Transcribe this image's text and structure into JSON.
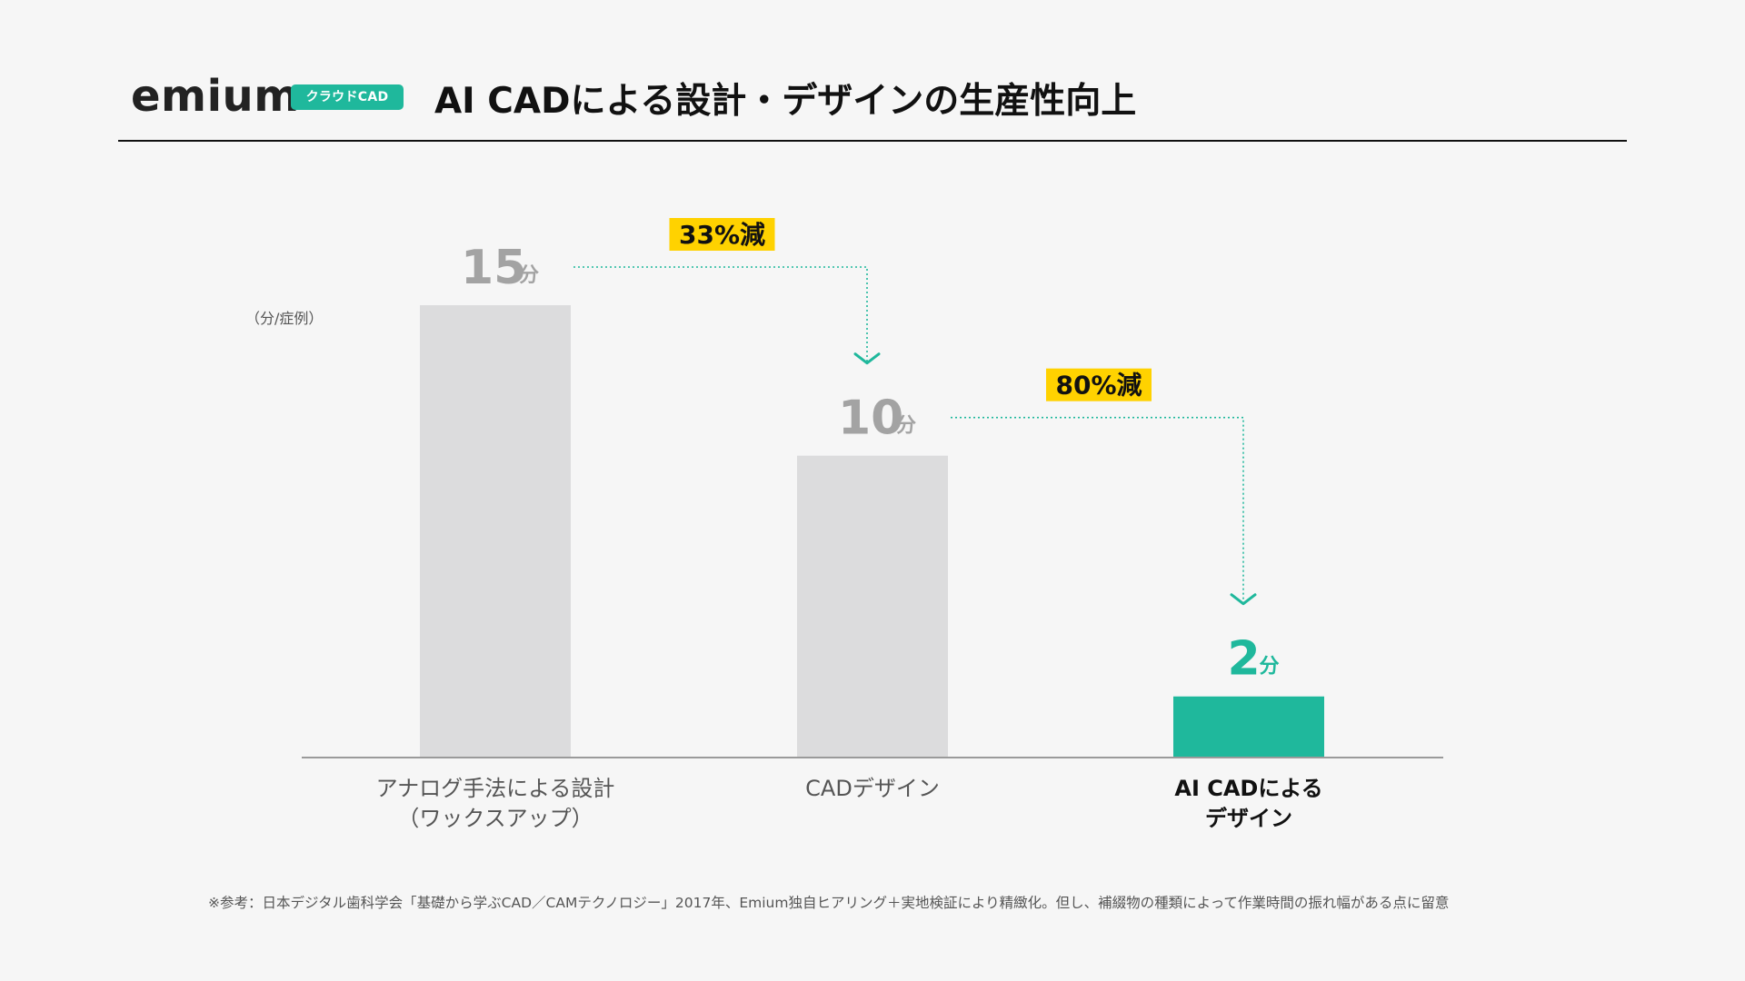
{
  "header": {
    "logo_text": "emium",
    "logo_badge": "クラウドCAD",
    "title": "AI CADによる設計・デザインの生産性向上"
  },
  "colors": {
    "accent": "#1fb89c",
    "bar_gray": "#dcdcdd",
    "value_gray": "#a3a3a3",
    "highlight": "#ffd200",
    "axis": "#9a9a9a"
  },
  "chart_data": {
    "type": "bar",
    "ylabel": "（分/症例）",
    "ylim": [
      0,
      15
    ],
    "grid": false,
    "legend": "none",
    "categories": [
      {
        "label_lines": [
          "アナログ手法による設計",
          "（ワックスアップ）"
        ],
        "bold": false
      },
      {
        "label_lines": [
          "CADデザイン"
        ],
        "bold": false
      },
      {
        "label_lines": [
          "AI CADによる",
          "デザイン"
        ],
        "bold": true
      }
    ],
    "values": [
      15,
      10,
      2
    ],
    "value_unit": "分",
    "highlight_index": 2,
    "reductions": [
      {
        "from": 0,
        "to": 1,
        "label": "33%減"
      },
      {
        "from": 1,
        "to": 2,
        "label": "80%減"
      }
    ]
  },
  "footnote": "※参考：日本デジタル歯科学会「基礎から学ぶCAD／CAMテクノロジー」2017年、Emium独自ヒアリング＋実地検証により精緻化。但し、補綴物の種類によって作業時間の振れ幅がある点に留意"
}
